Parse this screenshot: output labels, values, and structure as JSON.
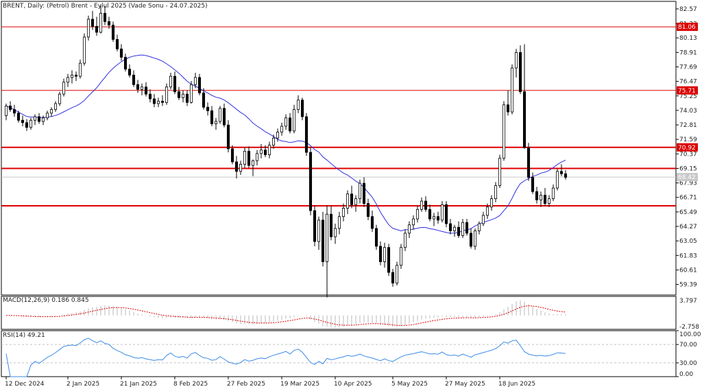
{
  "chart_data": {
    "type": "candlestick",
    "title": "BRENT, Daily:  (Petrol) Brent - Eylul 2025 (Vade Sonu - 24.07.2025)",
    "ylim": [
      58.5,
      83.2
    ],
    "y_ticks": [
      "82.57",
      "81.33",
      "80.13",
      "78.91",
      "77.69",
      "76.47",
      "75.25",
      "74.03",
      "72.81",
      "71.59",
      "70.37",
      "69.15",
      "67.93",
      "66.71",
      "65.49",
      "64.27",
      "63.05",
      "61.83",
      "60.61",
      "59.39"
    ],
    "x_ticks": [
      "12 Dec 2024",
      "2 Jan 2025",
      "21 Jan 2025",
      "8 Feb 2025",
      "27 Feb 2025",
      "19 Mar 2025",
      "10 Apr 2025",
      "5 May 2025",
      "27 May 2025",
      "18 Jun 2025"
    ],
    "x_tick_index": [
      0,
      15,
      28,
      41,
      54,
      67,
      80,
      94,
      107,
      120
    ],
    "levels": [
      {
        "value": 81.06,
        "label": "81.06",
        "style": "thin"
      },
      {
        "value": 75.71,
        "label": "75.71",
        "style": "thin"
      },
      {
        "value": 70.92,
        "label": "70.92",
        "style": "thick"
      },
      {
        "value": 69.15,
        "label": "",
        "style": "thick"
      },
      {
        "value": 66.0,
        "label": "",
        "style": "thick"
      }
    ],
    "current_price": {
      "value": 68.42,
      "label": "68.42"
    },
    "colors": {
      "bull": "#ffffff",
      "bear": "#000000",
      "ma": "#2f2fe0",
      "level": "#dd0000",
      "macd_signal": "#dd0000",
      "rsi": "#3a8ae6"
    },
    "ohlc": [
      [
        73.6,
        74.6,
        73.2,
        74.4
      ],
      [
        74.4,
        74.8,
        73.9,
        74.1
      ],
      [
        74.1,
        74.5,
        73.5,
        73.8
      ],
      [
        73.8,
        74.0,
        73.0,
        73.2
      ],
      [
        73.2,
        73.6,
        72.7,
        73.0
      ],
      [
        73.0,
        73.3,
        72.3,
        72.6
      ],
      [
        72.6,
        73.4,
        72.4,
        73.2
      ],
      [
        73.2,
        73.7,
        72.8,
        73.5
      ],
      [
        73.5,
        73.8,
        72.9,
        73.1
      ],
      [
        73.1,
        73.6,
        72.8,
        73.4
      ],
      [
        73.4,
        74.0,
        73.2,
        73.8
      ],
      [
        73.8,
        74.3,
        73.5,
        74.1
      ],
      [
        74.1,
        74.8,
        73.9,
        74.6
      ],
      [
        74.6,
        75.6,
        74.4,
        75.4
      ],
      [
        75.4,
        76.7,
        75.2,
        76.4
      ],
      [
        76.4,
        77.1,
        76.0,
        76.8
      ],
      [
        76.8,
        77.4,
        76.3,
        77.0
      ],
      [
        77.0,
        77.3,
        76.5,
        76.9
      ],
      [
        76.9,
        78.3,
        76.7,
        78.0
      ],
      [
        78.0,
        80.5,
        77.8,
        80.2
      ],
      [
        80.2,
        82.0,
        79.9,
        81.7
      ],
      [
        81.7,
        82.4,
        80.8,
        81.1
      ],
      [
        81.1,
        81.9,
        80.3,
        80.6
      ],
      [
        80.6,
        82.9,
        80.5,
        82.2
      ],
      [
        82.2,
        82.8,
        81.2,
        81.5
      ],
      [
        81.5,
        81.9,
        80.9,
        81.2
      ],
      [
        81.2,
        81.5,
        79.8,
        80.0
      ],
      [
        80.0,
        80.4,
        79.0,
        79.2
      ],
      [
        79.2,
        79.6,
        78.2,
        78.5
      ],
      [
        78.5,
        78.8,
        77.3,
        77.5
      ],
      [
        77.5,
        77.9,
        76.8,
        77.0
      ],
      [
        77.0,
        77.4,
        76.0,
        76.2
      ],
      [
        76.2,
        76.6,
        75.5,
        75.8
      ],
      [
        75.8,
        76.3,
        75.3,
        76.0
      ],
      [
        76.0,
        76.4,
        75.2,
        75.4
      ],
      [
        75.4,
        75.8,
        74.7,
        75.0
      ],
      [
        75.0,
        75.4,
        74.3,
        74.6
      ],
      [
        74.6,
        75.1,
        74.3,
        74.8
      ],
      [
        74.8,
        75.3,
        74.4,
        74.7
      ],
      [
        74.7,
        76.3,
        74.5,
        76.0
      ],
      [
        76.0,
        77.2,
        75.8,
        76.9
      ],
      [
        76.9,
        77.3,
        75.4,
        75.6
      ],
      [
        75.6,
        76.0,
        74.9,
        75.1
      ],
      [
        75.1,
        75.7,
        74.7,
        75.4
      ],
      [
        75.4,
        75.7,
        74.4,
        74.7
      ],
      [
        74.7,
        76.5,
        74.6,
        76.2
      ],
      [
        76.2,
        77.2,
        75.9,
        76.8
      ],
      [
        76.8,
        77.1,
        75.3,
        75.5
      ],
      [
        75.5,
        75.9,
        74.1,
        74.3
      ],
      [
        74.3,
        74.7,
        73.6,
        74.0
      ],
      [
        74.0,
        74.4,
        72.7,
        72.9
      ],
      [
        72.9,
        73.4,
        72.4,
        73.1
      ],
      [
        73.1,
        74.4,
        72.9,
        74.2
      ],
      [
        74.2,
        74.6,
        72.6,
        72.8
      ],
      [
        72.8,
        73.2,
        70.5,
        70.8
      ],
      [
        70.8,
        71.1,
        69.5,
        69.7
      ],
      [
        69.7,
        70.2,
        68.3,
        68.9
      ],
      [
        68.9,
        69.8,
        68.6,
        69.5
      ],
      [
        69.5,
        70.9,
        69.2,
        70.6
      ],
      [
        70.6,
        71.0,
        69.2,
        69.4
      ],
      [
        69.4,
        69.9,
        68.5,
        69.8
      ],
      [
        69.8,
        70.7,
        69.4,
        70.4
      ],
      [
        70.4,
        71.2,
        70.0,
        70.7
      ],
      [
        70.7,
        71.1,
        70.1,
        70.3
      ],
      [
        70.3,
        71.4,
        70.0,
        71.1
      ],
      [
        71.1,
        72.0,
        70.8,
        71.7
      ],
      [
        71.7,
        72.5,
        71.4,
        72.2
      ],
      [
        72.2,
        73.0,
        71.9,
        72.7
      ],
      [
        72.7,
        73.7,
        72.4,
        73.4
      ],
      [
        73.4,
        73.8,
        72.1,
        72.3
      ],
      [
        72.3,
        74.5,
        72.1,
        74.1
      ],
      [
        74.1,
        75.3,
        73.8,
        74.9
      ],
      [
        74.9,
        75.1,
        73.2,
        73.5
      ],
      [
        73.5,
        73.8,
        70.2,
        70.5
      ],
      [
        70.5,
        70.9,
        65.2,
        65.6
      ],
      [
        65.6,
        66.0,
        62.6,
        63.0
      ],
      [
        63.0,
        65.1,
        62.3,
        64.8
      ],
      [
        64.8,
        65.5,
        60.9,
        61.3
      ],
      [
        61.3,
        66.0,
        58.3,
        65.3
      ],
      [
        65.3,
        66.0,
        63.1,
        63.4
      ],
      [
        63.4,
        64.5,
        62.8,
        64.1
      ],
      [
        64.1,
        65.5,
        63.6,
        65.1
      ],
      [
        65.1,
        66.2,
        64.7,
        65.8
      ],
      [
        65.8,
        67.3,
        65.3,
        67.0
      ],
      [
        67.0,
        67.7,
        65.8,
        66.1
      ],
      [
        66.1,
        66.9,
        65.5,
        66.6
      ],
      [
        66.6,
        68.2,
        66.2,
        67.9
      ],
      [
        67.9,
        68.4,
        65.9,
        66.2
      ],
      [
        66.2,
        66.6,
        64.8,
        65.1
      ],
      [
        65.1,
        65.6,
        63.8,
        64.1
      ],
      [
        64.1,
        64.4,
        62.3,
        62.6
      ],
      [
        62.6,
        63.0,
        61.0,
        61.3
      ],
      [
        61.3,
        62.9,
        60.8,
        62.5
      ],
      [
        62.5,
        62.8,
        60.1,
        60.4
      ],
      [
        60.4,
        60.7,
        59.2,
        59.5
      ],
      [
        59.5,
        61.3,
        59.3,
        61.0
      ],
      [
        61.0,
        62.8,
        60.7,
        62.5
      ],
      [
        62.5,
        64.0,
        62.2,
        63.7
      ],
      [
        63.7,
        64.7,
        63.3,
        64.4
      ],
      [
        64.4,
        65.2,
        64.0,
        64.9
      ],
      [
        64.9,
        66.0,
        64.6,
        65.7
      ],
      [
        65.7,
        66.7,
        65.5,
        66.4
      ],
      [
        66.4,
        66.8,
        65.5,
        65.7
      ],
      [
        65.7,
        66.1,
        64.7,
        64.9
      ],
      [
        64.9,
        65.4,
        64.3,
        65.1
      ],
      [
        65.1,
        65.5,
        64.5,
        64.8
      ],
      [
        64.8,
        66.4,
        64.6,
        66.1
      ],
      [
        66.1,
        66.4,
        64.2,
        64.5
      ],
      [
        64.5,
        64.9,
        63.6,
        63.9
      ],
      [
        63.9,
        64.4,
        63.4,
        64.2
      ],
      [
        64.2,
        64.7,
        63.3,
        63.5
      ],
      [
        63.5,
        64.9,
        63.3,
        64.6
      ],
      [
        64.6,
        64.9,
        63.5,
        63.7
      ],
      [
        63.7,
        64.1,
        62.4,
        62.6
      ],
      [
        62.6,
        64.1,
        62.3,
        63.9
      ],
      [
        63.9,
        64.7,
        63.6,
        64.5
      ],
      [
        64.5,
        65.5,
        64.3,
        65.2
      ],
      [
        65.2,
        66.2,
        64.9,
        65.9
      ],
      [
        65.9,
        66.9,
        65.6,
        66.6
      ],
      [
        66.6,
        68.0,
        66.3,
        67.7
      ],
      [
        67.7,
        70.3,
        67.5,
        70.0
      ],
      [
        70.0,
        74.8,
        69.8,
        74.5
      ],
      [
        74.5,
        75.7,
        73.6,
        73.9
      ],
      [
        73.9,
        77.9,
        73.7,
        77.6
      ],
      [
        77.6,
        79.2,
        76.8,
        78.9
      ],
      [
        78.9,
        79.5,
        75.4,
        75.6
      ],
      [
        75.6,
        79.6,
        70.8,
        70.9
      ],
      [
        70.9,
        71.3,
        68.1,
        68.4
      ],
      [
        68.4,
        68.8,
        67.0,
        67.2
      ],
      [
        67.2,
        67.6,
        66.2,
        66.5
      ],
      [
        66.5,
        67.2,
        65.9,
        66.9
      ],
      [
        66.9,
        67.5,
        66.0,
        66.2
      ],
      [
        66.2,
        66.9,
        65.9,
        66.6
      ],
      [
        66.6,
        67.8,
        66.4,
        67.5
      ],
      [
        67.5,
        69.1,
        67.3,
        68.9
      ],
      [
        68.9,
        69.5,
        68.5,
        68.7
      ],
      [
        68.7,
        69.0,
        68.2,
        68.4
      ]
    ],
    "macd": {
      "label": "MACD(12,26,9) 0.186 0.845",
      "ylim": [
        -2.758,
        3.797
      ],
      "y_ticks": [
        "3.797",
        "-2.758"
      ]
    },
    "rsi": {
      "label": "RSI(14) 49.21",
      "ylim": [
        0,
        100
      ],
      "y_ticks": [
        "100.00",
        "70.00",
        "30.00",
        "0.00"
      ]
    }
  }
}
